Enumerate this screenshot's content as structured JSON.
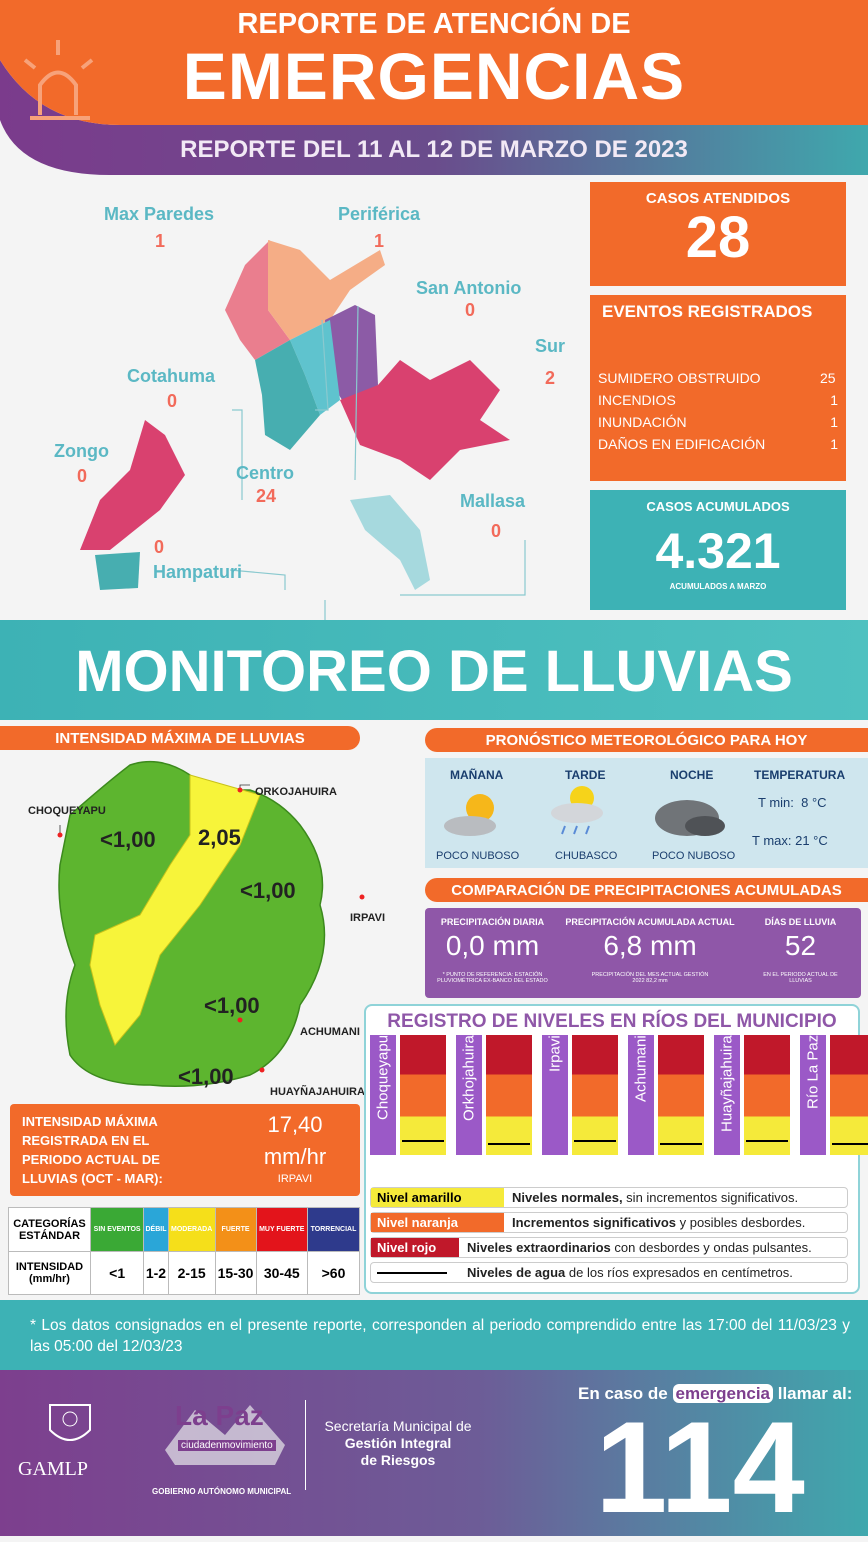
{
  "header": {
    "subtitle": "REPORTE DE ATENCIÓN DE",
    "title": "EMERGENCIAS",
    "period": "REPORTE DEL 11 AL 12 DE MARZO DE 2023"
  },
  "districts": [
    {
      "name": "Max Paredes",
      "value": 1
    },
    {
      "name": "Periférica",
      "value": 1
    },
    {
      "name": "San Antonio",
      "value": 0
    },
    {
      "name": "Sur",
      "value": 2
    },
    {
      "name": "Cotahuma",
      "value": 0
    },
    {
      "name": "Zongo",
      "value": 0
    },
    {
      "name": "Centro",
      "value": 24
    },
    {
      "name": "Mallasa",
      "value": 0
    },
    {
      "name": "Hampaturi",
      "value": 0
    }
  ],
  "cases": {
    "label": "CASOS ATENDIDOS",
    "value": 28
  },
  "events": {
    "title": "EVENTOS REGISTRADOS",
    "items": [
      {
        "name": "SUMIDERO OBSTRUIDO",
        "value": 25
      },
      {
        "name": "INCENDIOS",
        "value": 1
      },
      {
        "name": "INUNDACIÓN",
        "value": 1
      },
      {
        "name": "DAÑOS EN EDIFICACIÓN",
        "value": 1
      }
    ]
  },
  "accumulated": {
    "label": "CASOS ACUMULADOS",
    "value": "4.321",
    "note": "ACUMULADOS  A MARZO"
  },
  "monitoring": {
    "title": "MONITOREO DE LLUVIAS"
  },
  "intensity": {
    "title": "INTENSIDAD MÁXIMA  DE LLUVIAS",
    "stations": [
      {
        "name": "CHOQUEYAPU",
        "value": "<1,00"
      },
      {
        "name": "ORKOJAHUIRA",
        "value": "2,05"
      },
      {
        "name": "IRPAVI",
        "value": "<1,00"
      },
      {
        "name": "ACHUMANI",
        "value": "<1,00"
      },
      {
        "name": "HUAYÑAJAHUIRA",
        "value": "<1,00"
      }
    ],
    "max_label": "INTENSIDAD MÁXIMA REGISTRADA EN EL PERIODO ACTUAL DE LLUVIAS (OCT - MAR):",
    "max_value": "17,40",
    "max_unit": "mm/hr",
    "max_station": "IRPAVI"
  },
  "scale_table": {
    "header": "CATEGORÍAS ESTÁNDAR",
    "row_label": "INTENSIDAD (mm/hr)",
    "categories": [
      {
        "name": "SIN EVENTOS",
        "range": "<1",
        "color": "#3aa935"
      },
      {
        "name": "DÉBIL",
        "range": "1-2",
        "color": "#2aa6d8"
      },
      {
        "name": "MODERADA",
        "range": "2-15",
        "color": "#f5df1a"
      },
      {
        "name": "FUERTE",
        "range": "15-30",
        "color": "#f39018"
      },
      {
        "name": "MUY FUERTE",
        "range": "30-45",
        "color": "#e3141b"
      },
      {
        "name": "TORRENCIAL",
        "range": ">60",
        "color": "#2e3a8c"
      }
    ]
  },
  "forecast": {
    "title": "PRONÓSTICO METEOROLÓGICO PARA HOY",
    "periods": [
      {
        "name": "MAÑANA",
        "desc": "POCO NUBOSO"
      },
      {
        "name": "TARDE",
        "desc": "CHUBASCO"
      },
      {
        "name": "NOCHE",
        "desc": "POCO NUBOSO"
      }
    ],
    "temp_title": "TEMPERATURA",
    "tmin": "T min:  8 °C",
    "tmax": "T max: 21 °C"
  },
  "comparison": {
    "title": "COMPARACIÓN DE PRECIPITACIONES ACUMULADAS",
    "items": [
      {
        "label": "PRECIPITACIÓN DIARIA",
        "value": "0,0 mm",
        "note": "* PUNTO DE REFERENCIA: ESTACIÓN PLUVIOMÉTRICA EX-BANCO DEL ESTADO"
      },
      {
        "label": "PRECIPITACIÓN ACUMULADA ACTUAL",
        "value": "6,8 mm",
        "note": "PRECIPITACIÓN DEL MES ACTUAL GESTIÓN 2022 82,2 mm"
      },
      {
        "label": "DÍAS DE LLUVIA",
        "value": "52",
        "note": "EN EL PERIODO ACTUAL DE LLUVIAS"
      }
    ]
  },
  "rivers": {
    "title": "REGISTRO DE NIVELES EN RÍOS DEL MUNICIPIO",
    "names": [
      "Choqueyapu",
      "Orkhojahuira",
      "Irpavi",
      "Achumani",
      "Huayñajahuira",
      "Río La Paz"
    ],
    "legend": [
      {
        "label": "Nivel amarillo",
        "bold": "Niveles normales,",
        "rest": " sin incrementos significativos."
      },
      {
        "label": "Nivel naranja",
        "bold": "Incrementos significativos",
        "rest": " y posibles desbordes."
      },
      {
        "label": "Nivel rojo",
        "bold": "Niveles extraordinarios",
        "rest": " con desbordes y ondas pulsantes."
      },
      {
        "bold": "Niveles de agua",
        "rest": " de los ríos expresados en centímetros."
      }
    ]
  },
  "footnote": "* Los datos consignados en el presente reporte, corresponden al periodo comprendido entre las 17:00 del 11/03/23 y las 05:00 del 12/03/23",
  "footer": {
    "gamlp": "GAMLP",
    "lapaz": "La Paz",
    "lapaz_tag": "ciudadenmovimiento",
    "gov": "GOBIERNO AUTÓNOMO MUNICIPAL",
    "secretaria": [
      "Secretaría Municipal de",
      "Gestión Integral",
      "de Riesgos"
    ],
    "call_pre": "En caso de",
    "call_word": "emergencia",
    "call_post": "llamar al:",
    "number": "114"
  }
}
